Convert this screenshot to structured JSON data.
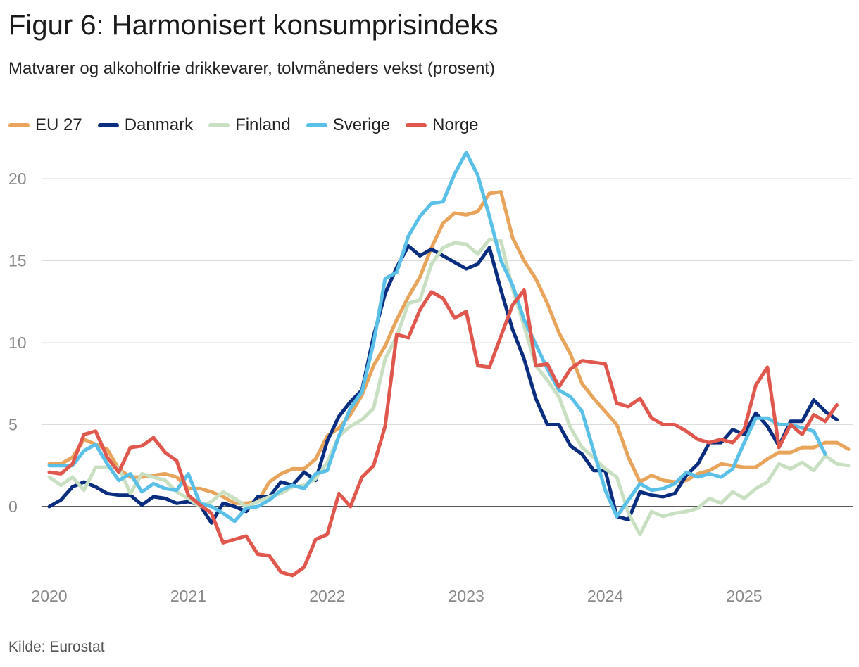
{
  "title": "Figur 6: Harmonisert konsumprisindeks",
  "subtitle": "Matvarer og alkoholfrie drikkevarer, tolvmåneders vekst (prosent)",
  "source": "Kilde: Eurostat",
  "chart_data": {
    "type": "line",
    "x_ticks": [
      "2020",
      "2021",
      "2022",
      "2023",
      "2024",
      "2025"
    ],
    "y_ticks": [
      0,
      5,
      10,
      15,
      20
    ],
    "ylim": [
      -4.5,
      22
    ],
    "x_start": "2020-01",
    "grid": true,
    "legend_position": "top-left",
    "series": [
      {
        "name": "EU 27",
        "color": "#e8a45a",
        "values": [
          2.6,
          2.6,
          3.0,
          4.1,
          3.8,
          3.5,
          2.3,
          1.8,
          1.8,
          1.9,
          2.0,
          1.8,
          1.1,
          1.1,
          0.9,
          0.6,
          0.2,
          0.2,
          0.3,
          1.5,
          2.0,
          2.3,
          2.3,
          2.9,
          4.3,
          4.8,
          5.6,
          6.8,
          8.6,
          9.8,
          11.4,
          12.8,
          14.0,
          15.8,
          17.3,
          17.9,
          17.8,
          18.0,
          19.1,
          19.2,
          16.4,
          15.0,
          13.9,
          12.4,
          10.6,
          9.3,
          7.5,
          6.6,
          5.8,
          5.0,
          3.0,
          1.5,
          1.9,
          1.6,
          1.5,
          1.6,
          2.0,
          2.2,
          2.6,
          2.5,
          2.4,
          2.4,
          2.9,
          3.3,
          3.3,
          3.6,
          3.6,
          3.9,
          3.9,
          3.5
        ]
      },
      {
        "name": "Danmark",
        "color": "#0b2d7f",
        "values": [
          0.0,
          0.4,
          1.2,
          1.5,
          1.2,
          0.8,
          0.7,
          0.7,
          0.1,
          0.6,
          0.5,
          0.2,
          0.3,
          0.1,
          -1.0,
          0.2,
          0.0,
          -0.3,
          0.6,
          0.6,
          1.5,
          1.3,
          2.1,
          1.6,
          4.0,
          5.5,
          6.4,
          7.1,
          10.4,
          13.0,
          14.6,
          15.9,
          15.3,
          15.7,
          15.3,
          14.9,
          14.5,
          14.8,
          15.8,
          13.2,
          10.8,
          9.0,
          6.6,
          5.0,
          5.0,
          3.7,
          3.2,
          2.2,
          2.2,
          -0.6,
          -0.8,
          0.9,
          0.7,
          0.6,
          0.8,
          1.9,
          2.6,
          3.9,
          3.9,
          4.7,
          4.4,
          5.7,
          4.9,
          3.7,
          5.2,
          5.2,
          6.5,
          5.8,
          5.3
        ]
      },
      {
        "name": "Finland",
        "color": "#c8dfc1",
        "values": [
          1.8,
          1.3,
          1.8,
          1.0,
          2.4,
          2.4,
          2.4,
          0.8,
          2.0,
          1.8,
          1.6,
          0.9,
          0.5,
          0.0,
          0.3,
          0.9,
          0.5,
          0.0,
          0.3,
          0.6,
          0.8,
          1.2,
          1.3,
          1.7,
          2.7,
          4.3,
          4.9,
          5.3,
          6.0,
          9.0,
          10.4,
          12.4,
          12.6,
          14.8,
          15.8,
          16.1,
          16.0,
          15.4,
          16.3,
          16.2,
          13.3,
          11.0,
          8.6,
          7.7,
          6.7,
          4.8,
          3.6,
          3.0,
          2.3,
          1.8,
          -0.4,
          -1.7,
          -0.3,
          -0.6,
          -0.4,
          -0.3,
          -0.1,
          0.5,
          0.2,
          0.9,
          0.5,
          1.1,
          1.5,
          2.6,
          2.3,
          2.7,
          2.2,
          3.1,
          2.6,
          2.5
        ]
      },
      {
        "name": "Sverige",
        "color": "#5bc0e8",
        "values": [
          2.5,
          2.5,
          2.5,
          3.4,
          3.8,
          2.6,
          1.6,
          2.0,
          0.9,
          1.4,
          1.1,
          1.0,
          2.0,
          0.2,
          0.0,
          -0.4,
          -0.9,
          -0.1,
          0.0,
          0.4,
          1.0,
          1.3,
          1.1,
          2.0,
          2.2,
          4.3,
          6.0,
          7.0,
          10.0,
          13.9,
          14.3,
          16.5,
          17.7,
          18.5,
          18.6,
          20.3,
          21.6,
          20.2,
          17.7,
          15.0,
          13.5,
          11.4,
          9.9,
          8.4,
          7.1,
          6.7,
          5.8,
          3.4,
          1.0,
          -0.6,
          0.4,
          1.4,
          1.0,
          1.1,
          1.4,
          2.1,
          1.8,
          2.0,
          1.8,
          2.3,
          3.9,
          5.4,
          5.4,
          5.0,
          5.0,
          4.8,
          4.6,
          3.2
        ]
      },
      {
        "name": "Norge",
        "color": "#e0574e",
        "values": [
          2.1,
          2.0,
          2.6,
          4.4,
          4.6,
          3.0,
          2.1,
          3.6,
          3.7,
          4.2,
          3.3,
          2.8,
          0.7,
          0.1,
          -0.4,
          -2.2,
          -2.0,
          -1.8,
          -2.9,
          -3.0,
          -4.0,
          -4.2,
          -3.7,
          -2.0,
          -1.7,
          0.8,
          0.0,
          1.8,
          2.5,
          4.9,
          10.5,
          10.3,
          12.0,
          13.1,
          12.7,
          11.5,
          11.9,
          8.6,
          8.5,
          10.4,
          12.3,
          13.2,
          8.6,
          8.7,
          7.3,
          8.4,
          8.9,
          8.8,
          8.7,
          6.3,
          6.1,
          6.6,
          5.4,
          5.0,
          5.0,
          4.6,
          4.1,
          3.9,
          4.1,
          3.9,
          4.7,
          7.4,
          8.5,
          3.6,
          5.0,
          4.4,
          5.6,
          5.2,
          6.2
        ]
      }
    ]
  }
}
